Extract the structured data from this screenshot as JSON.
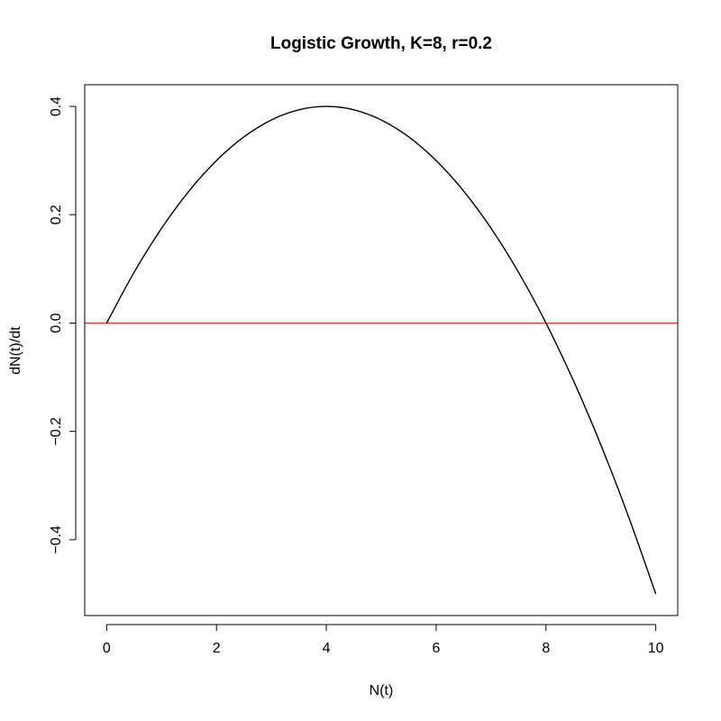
{
  "chart_data": {
    "type": "line",
    "title": "Logistic Growth, K=8, r=0.2",
    "xlabel": "N(t)",
    "ylabel": "dN(t)/dt",
    "xlim": [
      -0.4,
      10.4
    ],
    "ylim": [
      -0.54,
      0.44
    ],
    "xticks": [
      0,
      2,
      4,
      6,
      8,
      10
    ],
    "yticks": [
      -0.4,
      -0.2,
      0.0,
      0.2,
      0.4
    ],
    "xtick_labels": [
      "0",
      "2",
      "4",
      "6",
      "8",
      "10"
    ],
    "ytick_labels": [
      "−0.4",
      "−0.2",
      "0.0",
      "0.2",
      "0.4"
    ],
    "grid": false,
    "legend": "none",
    "series": [
      {
        "color": "#000000",
        "x": [
          0,
          0.5,
          1,
          1.5,
          2,
          2.5,
          3,
          3.5,
          4,
          4.5,
          5,
          5.5,
          6,
          6.5,
          7,
          7.5,
          8,
          8.5,
          9,
          9.5,
          10
        ],
        "y": [
          0,
          0.0938,
          0.175,
          0.2438,
          0.3,
          0.3438,
          0.375,
          0.3938,
          0.4,
          0.3938,
          0.375,
          0.3438,
          0.3,
          0.2438,
          0.175,
          0.0938,
          0,
          -0.1063,
          -0.225,
          -0.3563,
          -0.5
        ]
      }
    ],
    "hlines": [
      {
        "y": 0,
        "color": "#e8382f"
      }
    ]
  }
}
